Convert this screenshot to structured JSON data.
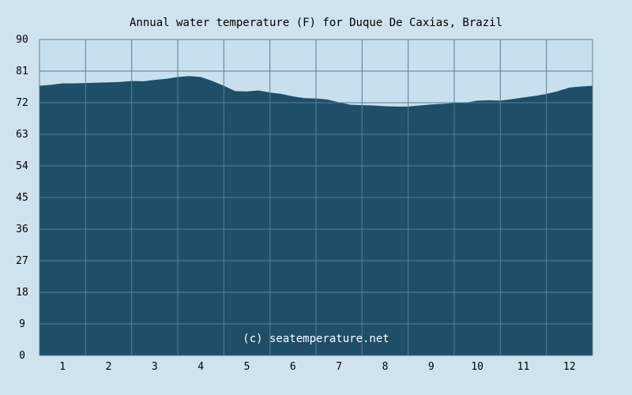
{
  "colors": {
    "page_background": "#cfe3ee",
    "plot_background": "#c8e0ee",
    "area_fill": "#1e4e68",
    "grid_line": "#5a7d94",
    "watermark_text": "#ffffff"
  },
  "chart_data": {
    "type": "area",
    "title": "Annual water temperature (F) for Duque De Caxias, Brazil",
    "xlabel": "",
    "ylabel": "",
    "watermark": "(c) seatemperature.net",
    "grid": true,
    "xlim": [
      0.5,
      12.5
    ],
    "ylim": [
      0,
      90
    ],
    "yticks": [
      0,
      9,
      18,
      27,
      36,
      45,
      54,
      63,
      72,
      81,
      90
    ],
    "xticks": [
      1,
      2,
      3,
      4,
      5,
      6,
      7,
      8,
      9,
      10,
      11,
      12
    ],
    "series": [
      {
        "x": [
          0.5,
          0.75,
          1.0,
          1.25,
          1.5,
          1.75,
          2.0,
          2.25,
          2.5,
          2.75,
          3.0,
          3.25,
          3.5,
          3.75,
          4.0,
          4.25,
          4.5,
          4.75,
          5.0,
          5.25,
          5.5,
          5.75,
          6.0,
          6.25,
          6.5,
          6.75,
          7.0,
          7.25,
          7.5,
          7.75,
          8.0,
          8.25,
          8.5,
          8.75,
          9.0,
          9.25,
          9.5,
          9.75,
          10.0,
          10.25,
          10.5,
          10.75,
          11.0,
          11.25,
          11.5,
          11.75,
          12.0,
          12.25,
          12.5
        ],
        "values": [
          76.8,
          77.1,
          77.5,
          77.5,
          77.6,
          77.7,
          77.8,
          77.9,
          78.2,
          78.1,
          78.5,
          78.8,
          79.3,
          79.6,
          79.3,
          78.2,
          76.8,
          75.3,
          75.2,
          75.5,
          74.9,
          74.5,
          73.8,
          73.3,
          73.2,
          72.9,
          72.1,
          71.4,
          71.3,
          71.2,
          71.0,
          70.9,
          70.9,
          71.2,
          71.5,
          71.7,
          71.9,
          72.0,
          72.6,
          72.7,
          72.6,
          73.0,
          73.5,
          73.9,
          74.5,
          75.3,
          76.3,
          76.6,
          76.8
        ]
      }
    ]
  }
}
